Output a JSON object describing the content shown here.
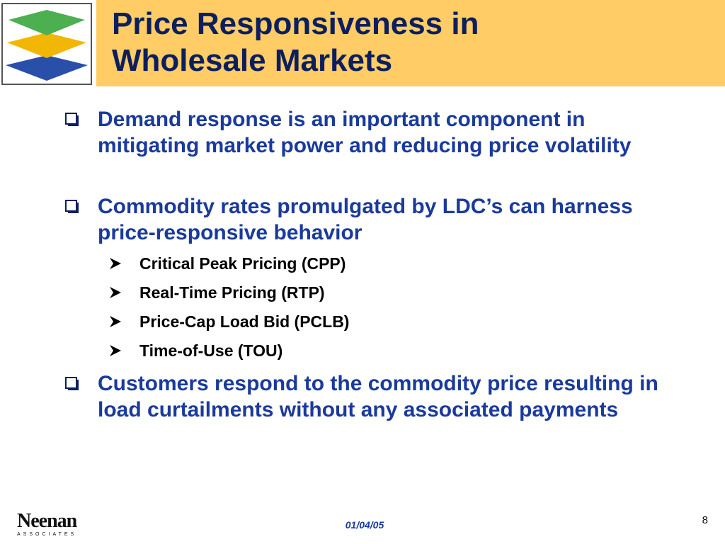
{
  "slide": {
    "title_line1": "Price Responsiveness in",
    "title_line2": "Wholesale Markets"
  },
  "bullets": [
    {
      "text": "Demand response is an important component in mitigating market power and reducing price volatility"
    },
    {
      "text": "Commodity rates promulgated by LDC’s can harness price-responsive behavior",
      "sub_items": [
        "Critical Peak Pricing (CPP)",
        "Real-Time Pricing (RTP)",
        "Price-Cap Load Bid (PCLB)",
        "Time-of-Use (TOU)"
      ]
    },
    {
      "text": "Customers respond to the commodity price resulting in load curtailments without any associated payments"
    }
  ],
  "footer": {
    "company_name": "Neenan",
    "company_sub": "ASSOCIATES",
    "date": "01/04/05",
    "page_number": "8"
  },
  "colors": {
    "title_band": "#ffcc66",
    "title_text": "#0b1f5e",
    "bullet_text": "#1a3a9c",
    "sub_text": "#000000",
    "logo_green": "#4caf50",
    "logo_yellow": "#f2b705",
    "logo_blue": "#2a4fa8"
  },
  "icons": {
    "bullet_marker": "checkbox-square-icon",
    "sub_marker": "arrowhead-icon",
    "logo": "stacked-layers-logo"
  }
}
